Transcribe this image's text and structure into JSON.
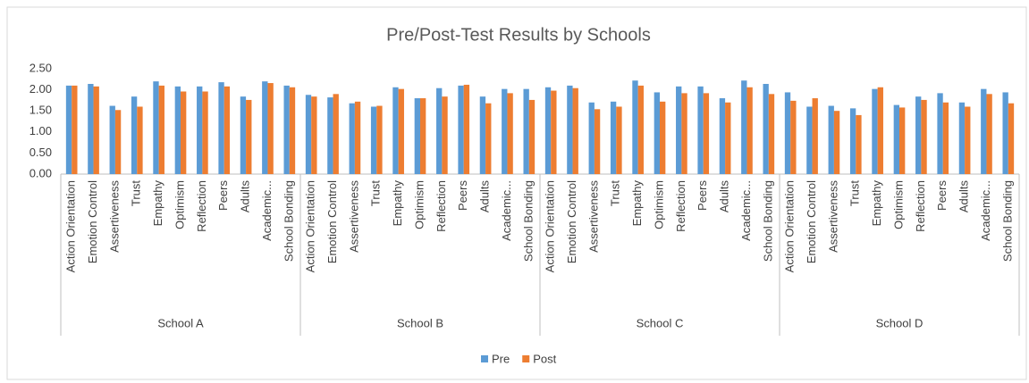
{
  "chart_data": {
    "type": "bar",
    "title": "Pre/Post-Test Results by Schools",
    "groups": [
      "School A",
      "School B",
      "School C",
      "School D"
    ],
    "categories": [
      "Action Orientation",
      "Emotion Control",
      "Assertiveness",
      "Trust",
      "Empathy",
      "Optimism",
      "Reflection",
      "Peers",
      "Adults",
      "Academic...",
      "School Bonding",
      "Action Orientation",
      "Emotion Control",
      "Assertiveness",
      "Trust",
      "Empathy",
      "Optimism",
      "Reflection",
      "Peers",
      "Adults",
      "Academic...",
      "School Bonding",
      "Action Orientation",
      "Emotion Control",
      "Assertiveness",
      "Trust",
      "Empathy",
      "Optimism",
      "Reflection",
      "Peers",
      "Adults",
      "Academic...",
      "School Bonding",
      "Action Orientation",
      "Emotion Control",
      "Assertiveness",
      "Trust",
      "Empathy",
      "Optimism",
      "Reflection",
      "Peers",
      "Adults",
      "Academic...",
      "School Bonding"
    ],
    "series": [
      {
        "name": "Pre",
        "color": "#5b9bd5",
        "values": [
          2.1,
          2.14,
          1.62,
          1.84,
          2.2,
          2.08,
          2.08,
          2.18,
          1.84,
          2.2,
          2.1,
          1.88,
          1.82,
          1.68,
          1.6,
          2.06,
          1.8,
          2.04,
          2.1,
          1.84,
          2.02,
          2.02,
          2.06,
          2.1,
          1.7,
          1.72,
          2.22,
          1.94,
          2.08,
          2.08,
          1.8,
          2.22,
          2.14,
          1.94,
          1.6,
          1.62,
          1.56,
          2.02,
          1.64,
          1.84,
          1.92,
          1.7,
          2.02,
          1.94
        ]
      },
      {
        "name": "Post",
        "color": "#ed7d31",
        "values": [
          2.1,
          2.08,
          1.52,
          1.6,
          2.1,
          1.96,
          1.96,
          2.08,
          1.76,
          2.16,
          2.06,
          1.84,
          1.9,
          1.72,
          1.62,
          2.02,
          1.8,
          1.84,
          2.12,
          1.68,
          1.92,
          1.76,
          1.98,
          2.04,
          1.54,
          1.6,
          2.1,
          1.72,
          1.92,
          1.92,
          1.7,
          2.06,
          1.9,
          1.74,
          1.8,
          1.5,
          1.4,
          2.06,
          1.58,
          1.76,
          1.7,
          1.6,
          1.9,
          1.68
        ]
      }
    ],
    "ylim": [
      0,
      2.5
    ],
    "yticks": [
      {
        "value": 0,
        "label": "0.00"
      },
      {
        "value": 0.5,
        "label": "0.50"
      },
      {
        "value": 1,
        "label": "1.00"
      },
      {
        "value": 1.5,
        "label": "1.50"
      },
      {
        "value": 2,
        "label": "2.00"
      },
      {
        "value": 2.5,
        "label": "2.50"
      }
    ],
    "grid": false,
    "legend": "bottom"
  }
}
